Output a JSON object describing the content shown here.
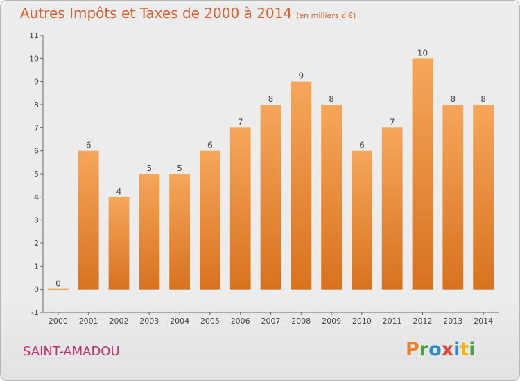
{
  "header": {
    "title": "Autres Impôts et Taxes de 2000 à 2014",
    "unit": "(en milliers d'€)"
  },
  "footer": {
    "commune": "SAINT-AMADOU",
    "brand_letters": [
      "P",
      "r",
      "o",
      "x",
      "i",
      "t",
      "i"
    ],
    "brand_colors": [
      "#e9812d",
      "#47a24a",
      "#2f89cf",
      "#e2473c",
      "#2f89cf",
      "#f0b21b",
      "#47a24a"
    ]
  },
  "colors": {
    "title": "#d8612f",
    "commune": "#c2306c",
    "bar_light": "#f6a65a",
    "bar_dark": "#d8721f"
  },
  "chart_data": {
    "type": "bar",
    "categories": [
      "2000",
      "2001",
      "2002",
      "2003",
      "2004",
      "2005",
      "2006",
      "2007",
      "2008",
      "2009",
      "2010",
      "2011",
      "2012",
      "2013",
      "2014"
    ],
    "values": [
      0,
      6,
      4,
      5,
      5,
      6,
      7,
      8,
      9,
      8,
      6,
      7,
      10,
      8,
      8
    ],
    "value_labels": [
      "0",
      "6",
      "4",
      "5",
      "5",
      "6",
      "7",
      "8",
      "9",
      "8",
      "6",
      "7",
      "10",
      "8",
      "8"
    ],
    "title": "Autres Impôts et Taxes de 2000 à 2014",
    "xlabel": "",
    "ylabel": "",
    "ylim": [
      -1,
      11
    ],
    "y_ticks": [
      "-1",
      "0",
      "1",
      "2",
      "3",
      "4",
      "5",
      "6",
      "7",
      "8",
      "9",
      "10",
      "11"
    ],
    "grid": false,
    "legend": "none"
  }
}
